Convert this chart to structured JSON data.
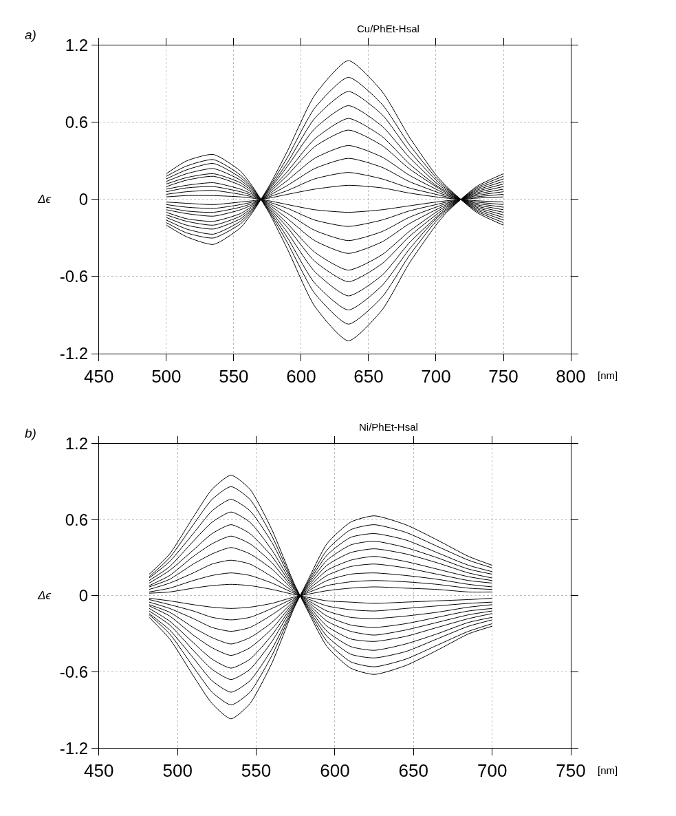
{
  "chart_data": [
    {
      "type": "line",
      "title": "Cu/PhEt-Hsal",
      "xlabel": "[nm]",
      "ylabel": "Δϵ",
      "annotations": [
        "a)"
      ],
      "grid": true,
      "line_style": "solid",
      "marker": "none",
      "x": [
        500,
        515,
        535,
        555,
        564,
        576,
        590,
        610,
        635,
        660,
        680,
        700,
        708,
        730,
        750
      ],
      "xlim": [
        450,
        800
      ],
      "xticks": [
        450,
        500,
        550,
        600,
        650,
        700,
        750,
        800
      ],
      "ylim": [
        -1.2,
        1.2
      ],
      "yticks": [
        -1.2,
        -0.6,
        0,
        0.6,
        1.2
      ],
      "series": [
        {
          "color": "#000000",
          "values": [
            -0.02,
            -0.03,
            -0.04,
            -0.02,
            -0.01,
            0.01,
            0.04,
            0.08,
            0.11,
            0.09,
            0.05,
            0.02,
            0.01,
            -0.01,
            -0.02
          ]
        },
        {
          "color": "#000000",
          "values": [
            -0.04,
            -0.06,
            -0.07,
            -0.04,
            -0.02,
            0.02,
            0.07,
            0.16,
            0.21,
            0.16,
            0.09,
            0.04,
            0.02,
            -0.02,
            -0.04
          ]
        },
        {
          "color": "#000000",
          "values": [
            -0.06,
            -0.09,
            -0.1,
            -0.06,
            -0.03,
            0.03,
            0.11,
            0.24,
            0.32,
            0.25,
            0.14,
            0.06,
            0.03,
            -0.03,
            -0.06
          ]
        },
        {
          "color": "#000000",
          "values": [
            -0.08,
            -0.11,
            -0.13,
            -0.08,
            -0.04,
            0.04,
            0.15,
            0.32,
            0.42,
            0.33,
            0.19,
            0.08,
            0.04,
            -0.04,
            -0.08
          ]
        },
        {
          "color": "#000000",
          "values": [
            -0.1,
            -0.15,
            -0.17,
            -0.11,
            -0.05,
            0.05,
            0.19,
            0.41,
            0.54,
            0.42,
            0.24,
            0.1,
            0.05,
            -0.05,
            -0.1
          ]
        },
        {
          "color": "#000000",
          "values": [
            -0.12,
            -0.17,
            -0.2,
            -0.13,
            -0.06,
            0.06,
            0.22,
            0.47,
            0.63,
            0.49,
            0.28,
            0.11,
            0.06,
            -0.06,
            -0.12
          ]
        },
        {
          "color": "#000000",
          "values": [
            -0.14,
            -0.2,
            -0.23,
            -0.15,
            -0.07,
            0.07,
            0.26,
            0.55,
            0.73,
            0.57,
            0.33,
            0.13,
            0.07,
            -0.07,
            -0.14
          ]
        },
        {
          "color": "#000000",
          "values": [
            -0.16,
            -0.23,
            -0.27,
            -0.17,
            -0.08,
            0.08,
            0.29,
            0.63,
            0.84,
            0.66,
            0.38,
            0.15,
            0.08,
            -0.08,
            -0.16
          ]
        },
        {
          "color": "#000000",
          "values": [
            -0.18,
            -0.26,
            -0.3,
            -0.19,
            -0.09,
            0.09,
            0.33,
            0.71,
            0.95,
            0.74,
            0.43,
            0.17,
            0.09,
            -0.09,
            -0.18
          ]
        },
        {
          "color": "#000000",
          "values": [
            -0.2,
            -0.29,
            -0.35,
            -0.22,
            -0.1,
            0.1,
            0.38,
            0.81,
            1.08,
            0.84,
            0.49,
            0.19,
            0.1,
            -0.1,
            -0.2
          ]
        },
        {
          "color": "#000000",
          "values": [
            0.02,
            0.03,
            0.03,
            0.02,
            0.01,
            -0.01,
            -0.04,
            -0.08,
            -0.1,
            -0.08,
            -0.05,
            -0.02,
            -0.01,
            0.01,
            0.02
          ]
        },
        {
          "color": "#000000",
          "values": [
            0.04,
            0.06,
            0.07,
            0.04,
            0.02,
            -0.02,
            -0.07,
            -0.16,
            -0.21,
            -0.16,
            -0.09,
            -0.04,
            -0.02,
            0.02,
            0.04
          ]
        },
        {
          "color": "#000000",
          "values": [
            0.06,
            0.09,
            0.1,
            0.06,
            0.03,
            -0.03,
            -0.11,
            -0.24,
            -0.32,
            -0.25,
            -0.14,
            -0.06,
            -0.03,
            0.03,
            0.06
          ]
        },
        {
          "color": "#000000",
          "values": [
            0.08,
            0.11,
            0.13,
            0.08,
            0.04,
            -0.04,
            -0.15,
            -0.32,
            -0.42,
            -0.33,
            -0.19,
            -0.08,
            -0.04,
            0.04,
            0.08
          ]
        },
        {
          "color": "#000000",
          "values": [
            0.1,
            0.15,
            0.18,
            0.11,
            0.05,
            -0.05,
            -0.19,
            -0.41,
            -0.55,
            -0.43,
            -0.25,
            -0.1,
            -0.05,
            0.05,
            0.1
          ]
        },
        {
          "color": "#000000",
          "values": [
            0.12,
            0.17,
            0.2,
            0.13,
            0.06,
            -0.06,
            -0.22,
            -0.48,
            -0.64,
            -0.5,
            -0.29,
            -0.12,
            -0.06,
            0.06,
            0.12
          ]
        },
        {
          "color": "#000000",
          "values": [
            0.14,
            0.2,
            0.24,
            0.15,
            0.07,
            -0.07,
            -0.26,
            -0.56,
            -0.75,
            -0.59,
            -0.34,
            -0.14,
            -0.07,
            0.07,
            0.14
          ]
        },
        {
          "color": "#000000",
          "values": [
            0.16,
            0.23,
            0.28,
            0.17,
            0.08,
            -0.08,
            -0.3,
            -0.65,
            -0.86,
            -0.67,
            -0.39,
            -0.15,
            -0.08,
            0.08,
            0.16
          ]
        },
        {
          "color": "#000000",
          "values": [
            0.18,
            0.26,
            0.31,
            0.19,
            0.09,
            -0.09,
            -0.34,
            -0.73,
            -0.97,
            -0.76,
            -0.44,
            -0.17,
            -0.09,
            0.09,
            0.18
          ]
        },
        {
          "color": "#000000",
          "values": [
            0.2,
            0.3,
            0.35,
            0.22,
            0.1,
            -0.1,
            -0.39,
            -0.83,
            -1.1,
            -0.86,
            -0.5,
            -0.2,
            -0.1,
            0.1,
            0.2
          ]
        }
      ]
    },
    {
      "type": "line",
      "title": "Ni/PhEt-Hsal",
      "xlabel": "[nm]",
      "ylabel": "Δϵ",
      "annotations": [
        "b)"
      ],
      "grid": true,
      "line_style": "solid",
      "marker": "none",
      "x": [
        482,
        495,
        510,
        522,
        534,
        546,
        560,
        574,
        582,
        595,
        610,
        625,
        645,
        665,
        685,
        700
      ],
      "xlim": [
        450,
        750
      ],
      "xticks": [
        450,
        500,
        550,
        600,
        650,
        700,
        750
      ],
      "ylim": [
        -1.2,
        1.2
      ],
      "yticks": [
        -1.2,
        -0.6,
        0,
        0.6,
        1.2
      ],
      "series": [
        {
          "color": "#000000",
          "values": [
            0.02,
            0.03,
            0.06,
            0.08,
            0.09,
            0.08,
            0.05,
            0.01,
            -0.01,
            -0.04,
            -0.05,
            -0.06,
            -0.05,
            -0.04,
            -0.03,
            -0.02
          ]
        },
        {
          "color": "#000000",
          "values": [
            0.03,
            0.06,
            0.12,
            0.16,
            0.18,
            0.16,
            0.1,
            0.02,
            -0.02,
            -0.08,
            -0.11,
            -0.12,
            -0.1,
            -0.08,
            -0.06,
            -0.05
          ]
        },
        {
          "color": "#000000",
          "values": [
            0.05,
            0.1,
            0.18,
            0.25,
            0.28,
            0.25,
            0.15,
            0.03,
            -0.03,
            -0.12,
            -0.17,
            -0.18,
            -0.16,
            -0.13,
            -0.09,
            -0.07
          ]
        },
        {
          "color": "#000000",
          "values": [
            0.07,
            0.13,
            0.25,
            0.33,
            0.38,
            0.33,
            0.21,
            0.04,
            -0.04,
            -0.16,
            -0.23,
            -0.25,
            -0.22,
            -0.17,
            -0.12,
            -0.1
          ]
        },
        {
          "color": "#000000",
          "values": [
            0.08,
            0.16,
            0.31,
            0.41,
            0.47,
            0.41,
            0.26,
            0.05,
            -0.05,
            -0.2,
            -0.28,
            -0.31,
            -0.27,
            -0.21,
            -0.15,
            -0.12
          ]
        },
        {
          "color": "#000000",
          "values": [
            0.1,
            0.2,
            0.36,
            0.49,
            0.56,
            0.49,
            0.31,
            0.06,
            -0.06,
            -0.24,
            -0.34,
            -0.36,
            -0.32,
            -0.25,
            -0.18,
            -0.14
          ]
        },
        {
          "color": "#000000",
          "values": [
            0.12,
            0.23,
            0.43,
            0.58,
            0.66,
            0.58,
            0.36,
            0.07,
            -0.07,
            -0.28,
            -0.4,
            -0.43,
            -0.38,
            -0.3,
            -0.21,
            -0.17
          ]
        },
        {
          "color": "#000000",
          "values": [
            0.14,
            0.27,
            0.49,
            0.67,
            0.76,
            0.67,
            0.42,
            0.08,
            -0.08,
            -0.32,
            -0.46,
            -0.49,
            -0.44,
            -0.34,
            -0.24,
            -0.19
          ]
        },
        {
          "color": "#000000",
          "values": [
            0.15,
            0.3,
            0.56,
            0.76,
            0.86,
            0.76,
            0.47,
            0.09,
            -0.09,
            -0.36,
            -0.52,
            -0.56,
            -0.5,
            -0.39,
            -0.28,
            -0.22
          ]
        },
        {
          "color": "#000000",
          "values": [
            0.17,
            0.33,
            0.62,
            0.84,
            0.95,
            0.84,
            0.52,
            0.1,
            -0.1,
            -0.4,
            -0.57,
            -0.62,
            -0.55,
            -0.43,
            -0.3,
            -0.24
          ]
        },
        {
          "color": "#000000",
          "values": [
            -0.02,
            -0.04,
            -0.07,
            -0.09,
            -0.1,
            -0.09,
            -0.06,
            -0.01,
            0.01,
            0.04,
            0.06,
            0.07,
            0.06,
            0.05,
            0.03,
            0.03
          ]
        },
        {
          "color": "#000000",
          "values": [
            -0.03,
            -0.07,
            -0.12,
            -0.17,
            -0.19,
            -0.17,
            -0.1,
            -0.02,
            0.02,
            0.08,
            0.11,
            0.12,
            0.11,
            0.09,
            0.06,
            0.05
          ]
        },
        {
          "color": "#000000",
          "values": [
            -0.05,
            -0.1,
            -0.18,
            -0.25,
            -0.28,
            -0.25,
            -0.15,
            -0.03,
            0.03,
            0.12,
            0.17,
            0.18,
            0.16,
            0.13,
            0.09,
            0.07
          ]
        },
        {
          "color": "#000000",
          "values": [
            -0.07,
            -0.13,
            -0.25,
            -0.33,
            -0.38,
            -0.33,
            -0.21,
            -0.04,
            0.04,
            0.16,
            0.23,
            0.25,
            0.22,
            0.17,
            0.12,
            0.1
          ]
        },
        {
          "color": "#000000",
          "values": [
            -0.08,
            -0.16,
            -0.31,
            -0.41,
            -0.47,
            -0.41,
            -0.26,
            -0.05,
            0.05,
            0.2,
            0.28,
            0.31,
            0.27,
            0.21,
            0.15,
            0.12
          ]
        },
        {
          "color": "#000000",
          "values": [
            -0.1,
            -0.2,
            -0.37,
            -0.5,
            -0.57,
            -0.5,
            -0.31,
            -0.06,
            0.06,
            0.24,
            0.34,
            0.37,
            0.33,
            0.26,
            0.18,
            0.14
          ]
        },
        {
          "color": "#000000",
          "values": [
            -0.12,
            -0.23,
            -0.43,
            -0.58,
            -0.66,
            -0.58,
            -0.36,
            -0.07,
            0.07,
            0.28,
            0.4,
            0.43,
            0.38,
            0.3,
            0.21,
            0.17
          ]
        },
        {
          "color": "#000000",
          "values": [
            -0.14,
            -0.27,
            -0.49,
            -0.67,
            -0.76,
            -0.67,
            -0.42,
            -0.08,
            0.08,
            0.32,
            0.46,
            0.49,
            0.44,
            0.34,
            0.24,
            0.19
          ]
        },
        {
          "color": "#000000",
          "values": [
            -0.15,
            -0.3,
            -0.56,
            -0.76,
            -0.86,
            -0.76,
            -0.47,
            -0.09,
            0.09,
            0.36,
            0.52,
            0.56,
            0.5,
            0.39,
            0.28,
            0.22
          ]
        },
        {
          "color": "#000000",
          "values": [
            -0.17,
            -0.34,
            -0.63,
            -0.85,
            -0.97,
            -0.85,
            -0.53,
            -0.1,
            0.1,
            0.41,
            0.58,
            0.63,
            0.56,
            0.44,
            0.31,
            0.24
          ]
        }
      ]
    }
  ]
}
